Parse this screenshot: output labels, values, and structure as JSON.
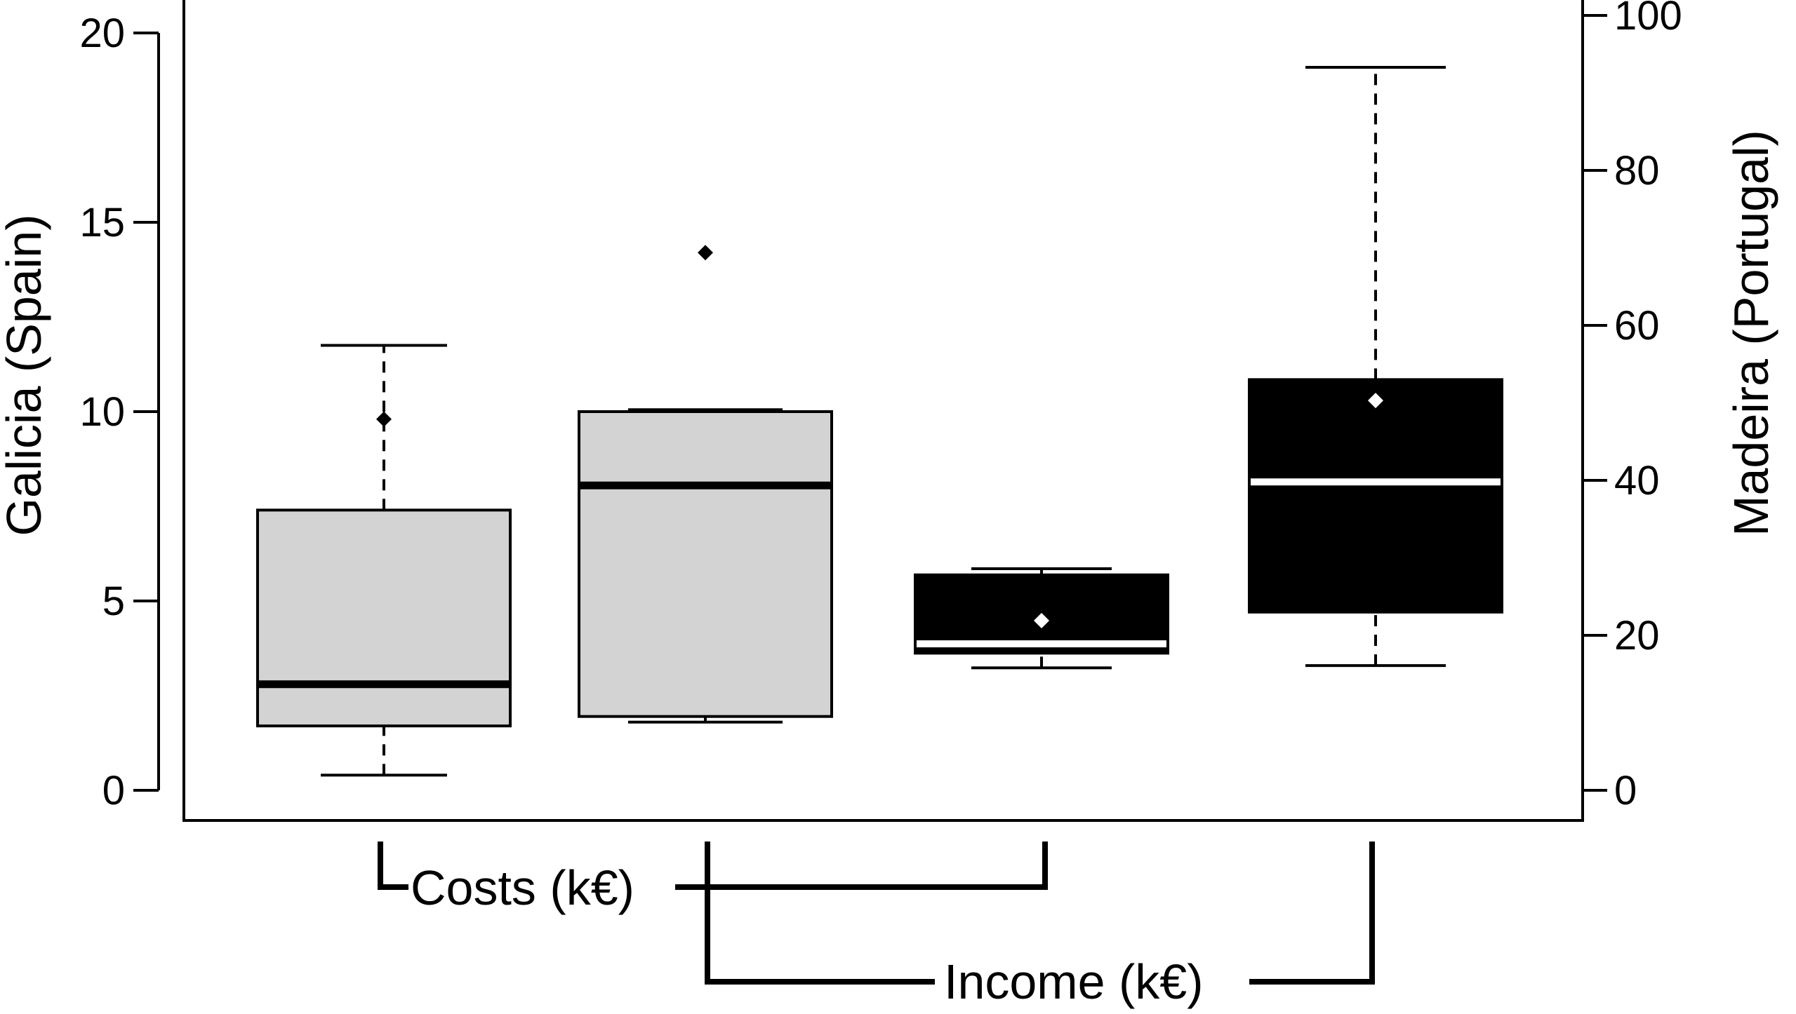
{
  "chart_data": {
    "type": "box",
    "left_axis": {
      "label": "Galicia (Spain)",
      "ylim": [
        0,
        20
      ],
      "ticks": [
        0,
        5,
        10,
        15,
        20
      ]
    },
    "right_axis": {
      "label": "Madeira (Portugal)",
      "ylim": [
        0,
        100
      ],
      "ticks": [
        0,
        20,
        40,
        60,
        80,
        100
      ]
    },
    "boxes": [
      {
        "group": "Costs (k€)",
        "region": "Galicia (Spain)",
        "axis": "left",
        "fill": "#d3d3d3",
        "whisker_low": 0.4,
        "q1": 1.7,
        "median": 2.8,
        "q3": 7.4,
        "whisker_high": 11.75,
        "mean": 9.8
      },
      {
        "group": "Income (k€)",
        "region": "Galicia (Spain)",
        "axis": "left",
        "fill": "#d3d3d3",
        "whisker_low": 1.8,
        "q1": 1.95,
        "median": 8.05,
        "q3": 10.0,
        "whisker_high": 10.05,
        "mean": 14.2
      },
      {
        "group": "Costs (k€)",
        "region": "Madeira (Portugal)",
        "axis": "right",
        "fill": "#000000",
        "whisker_low": 15.8,
        "q1": 17.7,
        "median": 18.9,
        "q3": 27.8,
        "whisker_high": 28.6,
        "mean": 21.9
      },
      {
        "group": "Income (k€)",
        "region": "Madeira (Portugal)",
        "axis": "right",
        "fill": "#000000",
        "whisker_low": 16.1,
        "q1": 23.0,
        "median": 39.8,
        "q3": 53.0,
        "whisker_high": 93.3,
        "mean": 50.3
      }
    ],
    "group_labels": {
      "costs": "Costs (k€)",
      "income": "Income (k€)"
    },
    "colors": {
      "galicia_box": "#d3d3d3",
      "madeira_box": "#000000",
      "galicia_mean": "#000000",
      "madeira_mean": "#ffffff"
    }
  }
}
